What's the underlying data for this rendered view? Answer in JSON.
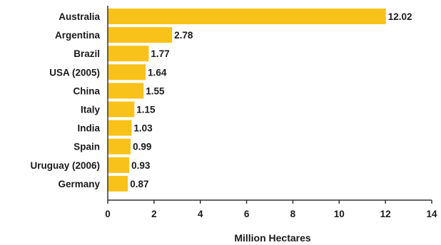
{
  "chart_data": {
    "type": "bar",
    "orientation": "horizontal",
    "categories": [
      "Australia",
      "Argentina",
      "Brazil",
      "USA (2005)",
      "China",
      "Italy",
      "India",
      "Spain",
      "Uruguay (2006)",
      "Germany"
    ],
    "values": [
      12.02,
      2.78,
      1.77,
      1.64,
      1.55,
      1.15,
      1.03,
      0.99,
      0.93,
      0.87
    ],
    "value_labels": [
      "12.02",
      "2.78",
      "1.77",
      "1.64",
      "1.55",
      "1.15",
      "1.03",
      "0.99",
      "0.93",
      "0.87"
    ],
    "title": "",
    "xlabel": "Million Hectares",
    "ylabel": "",
    "xlim": [
      0,
      14
    ],
    "xticks": [
      0,
      2,
      4,
      6,
      8,
      10,
      12,
      14
    ],
    "xtick_labels": [
      "0",
      "2",
      "4",
      "6",
      "8",
      "10",
      "12",
      "14"
    ],
    "grid": false,
    "legend": "none",
    "colors": {
      "bar": "#F9C21A",
      "axis": "#333333",
      "text": "#1a1a1a"
    }
  }
}
